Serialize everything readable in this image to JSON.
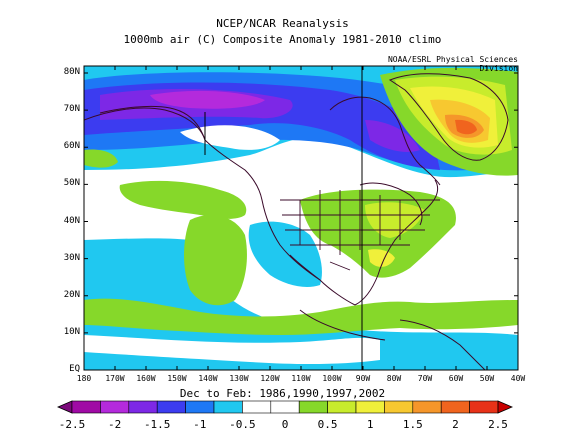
{
  "title_line1": "NCEP/NCAR Reanalysis",
  "title_line2": "1000mb air (C) Composite Anomaly 1981-2010 climo",
  "credit": "NOAA/ESRL Physical Sciences Division",
  "period": "Dec to Feb: 1986,1990,1997,2002",
  "lat_labels": [
    "80N",
    "70N",
    "60N",
    "50N",
    "40N",
    "30N",
    "20N",
    "10N",
    "EQ"
  ],
  "lon_labels": [
    "180",
    "170W",
    "160W",
    "150W",
    "140W",
    "130W",
    "120W",
    "110W",
    "100W",
    "90W",
    "80W",
    "70W",
    "60W",
    "50W",
    "40W"
  ],
  "colorbar": {
    "ticks": [
      "-2.5",
      "-2",
      "-1.5",
      "-1",
      "-0.5",
      "0",
      "0.5",
      "1",
      "1.5",
      "2",
      "2.5"
    ],
    "colors": [
      "#7b0a7b",
      "#a00aa5",
      "#b42adc",
      "#7d28e6",
      "#3c3cf0",
      "#1e78f5",
      "#20c8f0",
      "#ffffff",
      "#ffffff",
      "#86d82a",
      "#c8ec2c",
      "#f0f03a",
      "#f7c830",
      "#f5962a",
      "#f0641e",
      "#e83218",
      "#c80000"
    ]
  },
  "colors": {
    "land_outline": "#3a0a2a",
    "grid": "#000000"
  }
}
